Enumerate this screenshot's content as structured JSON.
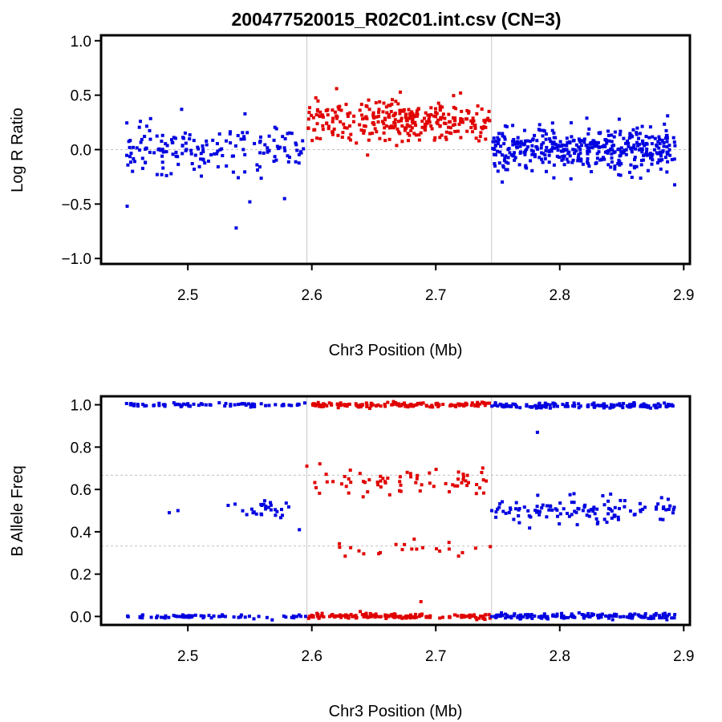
{
  "title": "200477520015_R02C01.int.csv (CN=3)",
  "colors": {
    "normal": "#0000e0",
    "gain": "#e00000",
    "frame": "#000000",
    "guide": "#c0c0c0"
  },
  "chart_data": [
    {
      "type": "scatter",
      "id": "lrr",
      "xlabel": "Chr3 Position (Mb)",
      "ylabel": "Log R Ratio",
      "xlim": [
        2.43,
        2.905
      ],
      "ylim": [
        -1.05,
        1.05
      ],
      "xticks": [
        "2.5",
        "2.6",
        "2.7",
        "2.8",
        "2.9"
      ],
      "yticks": [
        "1.0",
        "0.5",
        "0.0",
        "−0.5",
        "−1.0"
      ],
      "vlines": [
        2.596,
        2.745
      ],
      "hlines": [
        0.0
      ],
      "segments": [
        {
          "name": "left normal",
          "color_key": "normal",
          "x_range": [
            2.45,
            2.595
          ],
          "y_mean": 0.0,
          "y_sd": 0.11,
          "n": 170
        },
        {
          "name": "gain region",
          "color_key": "gain",
          "x_range": [
            2.597,
            2.744
          ],
          "y_mean": 0.25,
          "y_sd": 0.09,
          "n": 310
        },
        {
          "name": "right normal",
          "color_key": "normal",
          "x_range": [
            2.745,
            2.893
          ],
          "y_mean": 0.0,
          "y_sd": 0.1,
          "n": 430
        }
      ],
      "outliers": [
        {
          "x": 2.451,
          "y": -0.52,
          "color_key": "normal"
        },
        {
          "x": 2.539,
          "y": -0.72,
          "color_key": "normal"
        },
        {
          "x": 2.55,
          "y": -0.48,
          "color_key": "normal"
        },
        {
          "x": 2.578,
          "y": -0.45,
          "color_key": "normal"
        },
        {
          "x": 2.495,
          "y": 0.37,
          "color_key": "normal"
        },
        {
          "x": 2.887,
          "y": 0.31,
          "color_key": "normal"
        },
        {
          "x": 2.62,
          "y": 0.56,
          "color_key": "gain"
        },
        {
          "x": 2.72,
          "y": 0.52,
          "color_key": "gain"
        },
        {
          "x": 2.645,
          "y": -0.05,
          "color_key": "gain"
        }
      ]
    },
    {
      "type": "scatter",
      "id": "baf",
      "xlabel": "Chr3 Position (Mb)",
      "ylabel": "B Allele Freq",
      "xlim": [
        2.43,
        2.905
      ],
      "ylim": [
        -0.04,
        1.04
      ],
      "xticks": [
        "2.5",
        "2.6",
        "2.7",
        "2.8",
        "2.9"
      ],
      "yticks": [
        "1.0",
        "0.8",
        "0.6",
        "0.4",
        "0.2",
        "0.0"
      ],
      "vlines": [
        2.596,
        2.745
      ],
      "hlines": [
        0.667,
        0.333
      ],
      "segments": [
        {
          "name": "left AA",
          "color_key": "normal",
          "x_range": [
            2.45,
            2.595
          ],
          "y_mean": 0.0,
          "y_sd": 0.005,
          "n": 70
        },
        {
          "name": "left BB",
          "color_key": "normal",
          "x_range": [
            2.45,
            2.595
          ],
          "y_mean": 1.0,
          "y_sd": 0.005,
          "n": 75
        },
        {
          "name": "left AB",
          "color_key": "normal",
          "x_range": [
            2.532,
            2.59
          ],
          "y_mean": 0.505,
          "y_sd": 0.02,
          "n": 28
        },
        {
          "name": "gain AAA",
          "color_key": "gain",
          "x_range": [
            2.597,
            2.744
          ],
          "y_mean": 0.0,
          "y_sd": 0.006,
          "n": 150
        },
        {
          "name": "gain BBB",
          "color_key": "gain",
          "x_range": [
            2.597,
            2.744
          ],
          "y_mean": 1.0,
          "y_sd": 0.006,
          "n": 130
        },
        {
          "name": "gain AAB",
          "color_key": "gain",
          "x_range": [
            2.6,
            2.744
          ],
          "y_mean": 0.64,
          "y_sd": 0.035,
          "n": 70
        },
        {
          "name": "gain ABB",
          "color_key": "gain",
          "x_range": [
            2.6,
            2.74
          ],
          "y_mean": 0.32,
          "y_sd": 0.025,
          "n": 22
        },
        {
          "name": "right AA",
          "color_key": "normal",
          "x_range": [
            2.745,
            2.893
          ],
          "y_mean": 0.0,
          "y_sd": 0.007,
          "n": 160
        },
        {
          "name": "right BB",
          "color_key": "normal",
          "x_range": [
            2.745,
            2.893
          ],
          "y_mean": 0.995,
          "y_sd": 0.007,
          "n": 150
        },
        {
          "name": "right AB",
          "color_key": "normal",
          "x_range": [
            2.745,
            2.893
          ],
          "y_mean": 0.5,
          "y_sd": 0.035,
          "n": 120
        }
      ],
      "outliers": [
        {
          "x": 2.485,
          "y": 0.49,
          "color_key": "normal"
        },
        {
          "x": 2.492,
          "y": 0.5,
          "color_key": "normal"
        },
        {
          "x": 2.59,
          "y": 0.41,
          "color_key": "normal"
        },
        {
          "x": 2.782,
          "y": 0.87,
          "color_key": "normal"
        },
        {
          "x": 2.596,
          "y": 0.71,
          "color_key": "gain"
        },
        {
          "x": 2.688,
          "y": 0.07,
          "color_key": "gain"
        },
        {
          "x": 2.744,
          "y": 0.33,
          "color_key": "gain"
        }
      ]
    }
  ]
}
